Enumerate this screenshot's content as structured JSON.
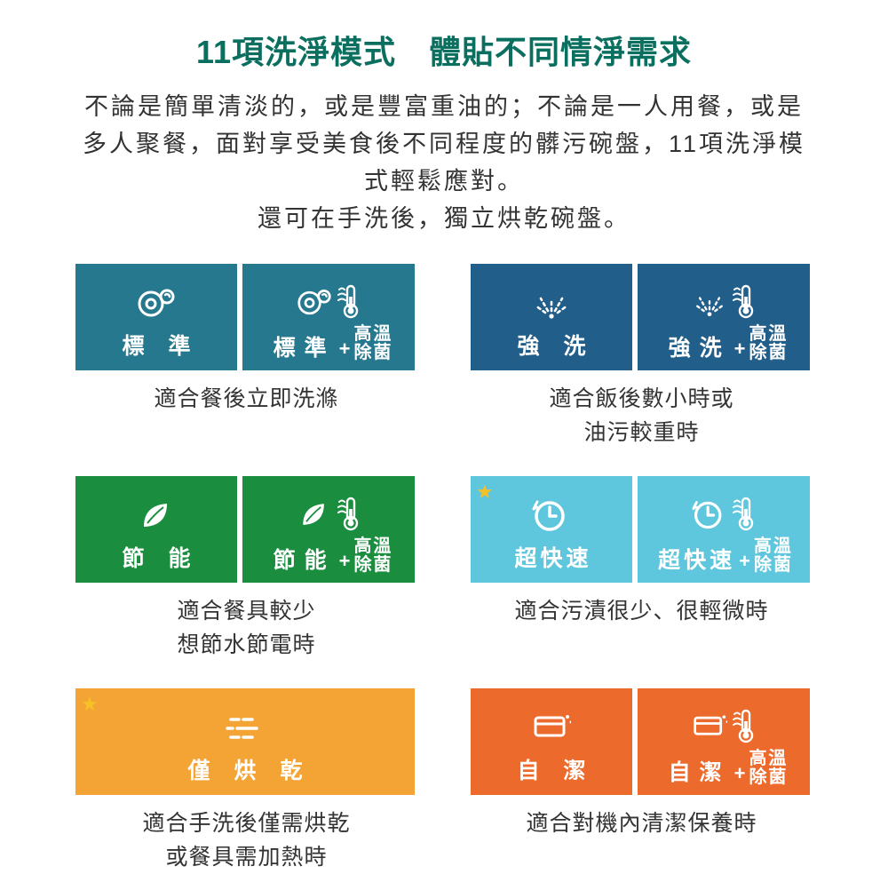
{
  "title_color": "#0b6f5f",
  "title": "11項洗淨模式　體貼不同情淨需求",
  "description": "不論是簡單清淡的，或是豐富重油的；不論是一人用餐，或是多人聚餐，面對享受美食後不同程度的髒污碗盤，11項洗淨模式輕鬆應對。\n還可在手洗後，獨立烘乾碗盤。",
  "hot_label_top": "高溫",
  "hot_label_bottom": "除菌",
  "groups": [
    {
      "color": "#26788f",
      "base_label": "標 準",
      "caption": "適合餐後立即洗滌",
      "icon": "dishes",
      "has_plus": true
    },
    {
      "color": "#215e8a",
      "base_label": "強 洗",
      "caption": "適合飯後數小時或\n油污較重時",
      "icon": "spray",
      "has_plus": true
    },
    {
      "color": "#1a8d3e",
      "base_label": "節 能",
      "caption": "適合餐具較少\n想節水節電時",
      "icon": "leaf",
      "has_plus": true
    },
    {
      "color": "#5ec6dd",
      "base_label": "超快速",
      "caption": "適合污漬很少、很輕微時",
      "icon": "clock",
      "has_plus": true,
      "star": true,
      "tight": true
    },
    {
      "color": "#f4a335",
      "base_label": "僅 烘 乾",
      "caption": "適合手洗後僅需烘乾\n或餐具需加熱時",
      "icon": "dry",
      "has_plus": false,
      "full": true,
      "star": true
    },
    {
      "color": "#ec6b2c",
      "base_label": "自 潔",
      "caption": "適合對機內清潔保養時",
      "icon": "clean",
      "has_plus": true
    }
  ]
}
